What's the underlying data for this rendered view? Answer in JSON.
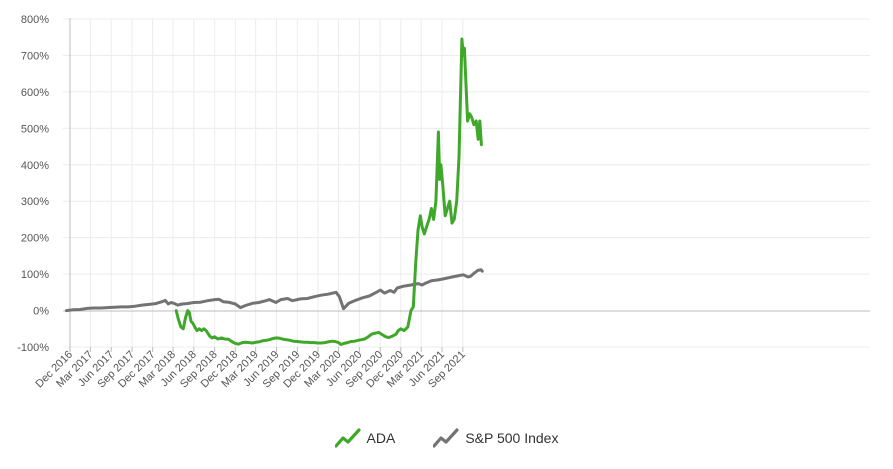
{
  "chart_data": {
    "type": "line",
    "y_ticks": [
      "800%",
      "700%",
      "600%",
      "500%",
      "400%",
      "300%",
      "200%",
      "100%",
      "0%",
      "-100%"
    ],
    "ylim": [
      -100,
      800
    ],
    "x_ticks": [
      "Dec 2016",
      "Mar 2017",
      "Jun 2017",
      "Sep 2017",
      "Dec 2017",
      "Mar 2018",
      "Jun 2018",
      "Sep 2018",
      "Dec 2018",
      "Mar 2019",
      "Jun 2019",
      "Sep 2019",
      "Dec 2019",
      "Mar 2020",
      "Jun 2020",
      "Sep 2020",
      "Dec 2020",
      "Mar 2021",
      "Jun 2021",
      "Sep 2021"
    ],
    "grid": true,
    "legend_position": "bottom",
    "series": [
      {
        "name": "ADA",
        "color": "#3fa82a",
        "points": [
          [
            "2018-03-15",
            0
          ],
          [
            "2018-03-25",
            -25
          ],
          [
            "2018-04-05",
            -45
          ],
          [
            "2018-04-15",
            -50
          ],
          [
            "2018-04-25",
            -20
          ],
          [
            "2018-05-05",
            0
          ],
          [
            "2018-05-12",
            -5
          ],
          [
            "2018-05-20",
            -30
          ],
          [
            "2018-05-28",
            -35
          ],
          [
            "2018-06-05",
            -45
          ],
          [
            "2018-06-15",
            -55
          ],
          [
            "2018-06-25",
            -50
          ],
          [
            "2018-07-05",
            -55
          ],
          [
            "2018-07-15",
            -50
          ],
          [
            "2018-07-25",
            -55
          ],
          [
            "2018-08-10",
            -70
          ],
          [
            "2018-08-20",
            -75
          ],
          [
            "2018-09-01",
            -72
          ],
          [
            "2018-09-15",
            -78
          ],
          [
            "2018-10-01",
            -75
          ],
          [
            "2018-10-15",
            -78
          ],
          [
            "2018-11-01",
            -79
          ],
          [
            "2018-11-15",
            -85
          ],
          [
            "2018-12-01",
            -90
          ],
          [
            "2018-12-15",
            -92
          ],
          [
            "2019-01-01",
            -88
          ],
          [
            "2019-01-15",
            -87
          ],
          [
            "2019-02-01",
            -88
          ],
          [
            "2019-02-15",
            -89
          ],
          [
            "2019-03-01",
            -87
          ],
          [
            "2019-03-15",
            -86
          ],
          [
            "2019-04-01",
            -83
          ],
          [
            "2019-04-15",
            -82
          ],
          [
            "2019-05-01",
            -80
          ],
          [
            "2019-05-15",
            -77
          ],
          [
            "2019-06-01",
            -75
          ],
          [
            "2019-06-15",
            -76
          ],
          [
            "2019-07-01",
            -79
          ],
          [
            "2019-07-15",
            -80
          ],
          [
            "2019-08-01",
            -82
          ],
          [
            "2019-08-15",
            -84
          ],
          [
            "2019-09-01",
            -85
          ],
          [
            "2019-09-15",
            -86
          ],
          [
            "2019-10-01",
            -87
          ],
          [
            "2019-10-15",
            -87
          ],
          [
            "2019-11-01",
            -88
          ],
          [
            "2019-11-15",
            -88
          ],
          [
            "2019-12-01",
            -89
          ],
          [
            "2019-12-15",
            -89
          ],
          [
            "2020-01-01",
            -88
          ],
          [
            "2020-01-15",
            -86
          ],
          [
            "2020-02-01",
            -84
          ],
          [
            "2020-02-15",
            -85
          ],
          [
            "2020-03-01",
            -88
          ],
          [
            "2020-03-12",
            -93
          ],
          [
            "2020-03-25",
            -90
          ],
          [
            "2020-04-10",
            -88
          ],
          [
            "2020-04-25",
            -85
          ],
          [
            "2020-05-10",
            -84
          ],
          [
            "2020-05-25",
            -82
          ],
          [
            "2020-06-10",
            -80
          ],
          [
            "2020-06-25",
            -78
          ],
          [
            "2020-07-10",
            -72
          ],
          [
            "2020-07-25",
            -65
          ],
          [
            "2020-08-10",
            -62
          ],
          [
            "2020-08-25",
            -60
          ],
          [
            "2020-09-10",
            -66
          ],
          [
            "2020-09-25",
            -72
          ],
          [
            "2020-10-10",
            -74
          ],
          [
            "2020-10-25",
            -70
          ],
          [
            "2020-11-10",
            -65
          ],
          [
            "2020-11-20",
            -55
          ],
          [
            "2020-12-01",
            -50
          ],
          [
            "2020-12-15",
            -55
          ],
          [
            "2021-01-01",
            -45
          ],
          [
            "2021-01-15",
            0
          ],
          [
            "2021-01-25",
            10
          ],
          [
            "2021-02-05",
            130
          ],
          [
            "2021-02-15",
            220
          ],
          [
            "2021-02-25",
            260
          ],
          [
            "2021-03-05",
            230
          ],
          [
            "2021-03-15",
            210
          ],
          [
            "2021-03-25",
            230
          ],
          [
            "2021-04-05",
            250
          ],
          [
            "2021-04-15",
            280
          ],
          [
            "2021-04-25",
            250
          ],
          [
            "2021-05-05",
            300
          ],
          [
            "2021-05-12",
            420
          ],
          [
            "2021-05-16",
            490
          ],
          [
            "2021-05-22",
            360
          ],
          [
            "2021-05-27",
            400
          ],
          [
            "2021-06-05",
            340
          ],
          [
            "2021-06-15",
            260
          ],
          [
            "2021-06-25",
            280
          ],
          [
            "2021-07-05",
            300
          ],
          [
            "2021-07-15",
            240
          ],
          [
            "2021-07-25",
            250
          ],
          [
            "2021-08-05",
            300
          ],
          [
            "2021-08-15",
            420
          ],
          [
            "2021-08-22",
            600
          ],
          [
            "2021-08-28",
            745
          ],
          [
            "2021-09-03",
            700
          ],
          [
            "2021-09-08",
            720
          ],
          [
            "2021-09-15",
            620
          ],
          [
            "2021-09-22",
            520
          ],
          [
            "2021-10-01",
            540
          ],
          [
            "2021-10-10",
            530
          ],
          [
            "2021-10-20",
            510
          ],
          [
            "2021-10-30",
            520
          ],
          [
            "2021-11-08",
            470
          ],
          [
            "2021-11-15",
            520
          ],
          [
            "2021-11-22",
            455
          ]
        ]
      },
      {
        "name": "S&P 500 Index",
        "color": "#737373",
        "points": [
          [
            "2016-11-15",
            0
          ],
          [
            "2016-12-15",
            2
          ],
          [
            "2017-01-15",
            3
          ],
          [
            "2017-02-15",
            6
          ],
          [
            "2017-03-15",
            7
          ],
          [
            "2017-04-15",
            7
          ],
          [
            "2017-05-15",
            8
          ],
          [
            "2017-06-15",
            9
          ],
          [
            "2017-07-15",
            10
          ],
          [
            "2017-08-15",
            10
          ],
          [
            "2017-09-15",
            12
          ],
          [
            "2017-10-15",
            15
          ],
          [
            "2017-11-15",
            17
          ],
          [
            "2017-12-15",
            19
          ],
          [
            "2018-01-15",
            25
          ],
          [
            "2018-01-26",
            28
          ],
          [
            "2018-02-08",
            18
          ],
          [
            "2018-02-20",
            22
          ],
          [
            "2018-03-05",
            20
          ],
          [
            "2018-03-22",
            15
          ],
          [
            "2018-04-10",
            18
          ],
          [
            "2018-05-01",
            19
          ],
          [
            "2018-06-01",
            22
          ],
          [
            "2018-07-01",
            23
          ],
          [
            "2018-08-01",
            27
          ],
          [
            "2018-09-01",
            30
          ],
          [
            "2018-09-20",
            31
          ],
          [
            "2018-10-10",
            24
          ],
          [
            "2018-11-01",
            23
          ],
          [
            "2018-12-01",
            18
          ],
          [
            "2018-12-24",
            8
          ],
          [
            "2019-01-15",
            14
          ],
          [
            "2019-02-15",
            20
          ],
          [
            "2019-03-15",
            22
          ],
          [
            "2019-04-15",
            27
          ],
          [
            "2019-05-01",
            30
          ],
          [
            "2019-05-30",
            22
          ],
          [
            "2019-06-20",
            30
          ],
          [
            "2019-07-20",
            33
          ],
          [
            "2019-08-10",
            27
          ],
          [
            "2019-09-15",
            32
          ],
          [
            "2019-10-15",
            33
          ],
          [
            "2019-11-15",
            38
          ],
          [
            "2019-12-15",
            42
          ],
          [
            "2020-01-15",
            45
          ],
          [
            "2020-02-19",
            50
          ],
          [
            "2020-03-05",
            38
          ],
          [
            "2020-03-23",
            5
          ],
          [
            "2020-04-15",
            20
          ],
          [
            "2020-05-15",
            28
          ],
          [
            "2020-06-15",
            35
          ],
          [
            "2020-07-15",
            40
          ],
          [
            "2020-08-15",
            50
          ],
          [
            "2020-09-02",
            56
          ],
          [
            "2020-09-20",
            48
          ],
          [
            "2020-10-15",
            55
          ],
          [
            "2020-11-01",
            50
          ],
          [
            "2020-11-15",
            62
          ],
          [
            "2020-12-15",
            67
          ],
          [
            "2021-01-15",
            70
          ],
          [
            "2021-02-15",
            74
          ],
          [
            "2021-03-05",
            70
          ],
          [
            "2021-03-20",
            75
          ],
          [
            "2021-04-15",
            82
          ],
          [
            "2021-05-15",
            84
          ],
          [
            "2021-06-15",
            88
          ],
          [
            "2021-07-15",
            92
          ],
          [
            "2021-08-15",
            96
          ],
          [
            "2021-09-02",
            98
          ],
          [
            "2021-09-25",
            92
          ],
          [
            "2021-10-05",
            94
          ],
          [
            "2021-10-20",
            102
          ],
          [
            "2021-11-05",
            110
          ],
          [
            "2021-11-20",
            112
          ],
          [
            "2021-11-26",
            108
          ]
        ]
      }
    ]
  }
}
